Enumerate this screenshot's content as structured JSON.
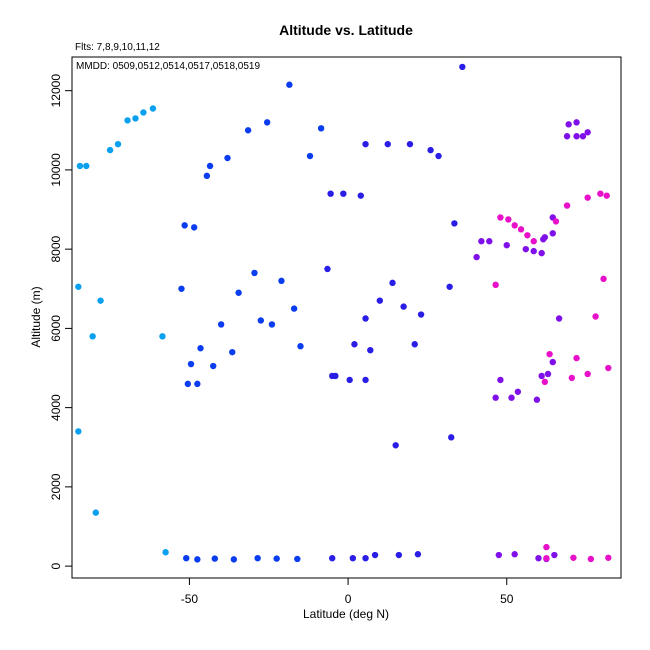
{
  "chart_data": {
    "type": "scatter",
    "title": "Altitude vs. Latitude",
    "xlabel": "Latitude (deg N)",
    "ylabel": "Altitude (m)",
    "annotations": [
      "Flts: 7,8,9,10,11,12",
      "MMDD: 0509,0512,0514,0517,0518,0519"
    ],
    "xlim": [
      -87,
      86
    ],
    "ylim": [
      -300,
      12850
    ],
    "xticks": [
      -50,
      0,
      50
    ],
    "yticks": [
      0,
      2000,
      4000,
      6000,
      8000,
      10000,
      12000
    ],
    "grid": false,
    "series": [
      {
        "color": "#0aa0f0",
        "points": [
          [
            -84.5,
            10100
          ],
          [
            -82.5,
            10100
          ],
          [
            -75,
            10500
          ],
          [
            -72.5,
            10650
          ],
          [
            -69.5,
            11250
          ],
          [
            -67,
            11300
          ],
          [
            -64.5,
            11450
          ],
          [
            -61.5,
            11550
          ],
          [
            -85,
            7050
          ],
          [
            -78,
            6700
          ],
          [
            -80.5,
            5800
          ],
          [
            -58.5,
            5800
          ],
          [
            -85,
            3400
          ],
          [
            -79.5,
            1350
          ],
          [
            -57.5,
            350
          ]
        ]
      },
      {
        "color": "#0a3cf0",
        "points": [
          [
            -18.5,
            12150
          ],
          [
            -25.5,
            11200
          ],
          [
            -31.5,
            11000
          ],
          [
            -8.5,
            11050
          ],
          [
            -12,
            10350
          ],
          [
            -38,
            10300
          ],
          [
            -43.5,
            10100
          ],
          [
            -44.5,
            9850
          ],
          [
            -51.5,
            8600
          ],
          [
            -48.5,
            8550
          ],
          [
            -29.5,
            7400
          ],
          [
            -21,
            7200
          ],
          [
            -52.5,
            7000
          ],
          [
            -34.5,
            6900
          ],
          [
            -17,
            6500
          ],
          [
            -27.5,
            6200
          ],
          [
            -24,
            6100
          ],
          [
            -40,
            6100
          ],
          [
            -15,
            5550
          ],
          [
            -36.5,
            5400
          ],
          [
            -46.5,
            5500
          ],
          [
            -49.5,
            5100
          ],
          [
            -42.5,
            5050
          ],
          [
            -50.5,
            4600
          ],
          [
            -47.5,
            4600
          ],
          [
            -51,
            200
          ],
          [
            -47.5,
            170
          ],
          [
            -42,
            190
          ],
          [
            -36,
            170
          ],
          [
            -28.5,
            200
          ],
          [
            -22.5,
            190
          ],
          [
            -16,
            180
          ]
        ]
      },
      {
        "color": "#2a1ee6",
        "points": [
          [
            36,
            12600
          ],
          [
            5.5,
            10650
          ],
          [
            12.5,
            10650
          ],
          [
            19.5,
            10650
          ],
          [
            26,
            10500
          ],
          [
            28.5,
            10350
          ],
          [
            -5.5,
            9400
          ],
          [
            -1.5,
            9400
          ],
          [
            4,
            9350
          ],
          [
            33.5,
            8650
          ],
          [
            -6.5,
            7500
          ],
          [
            14,
            7150
          ],
          [
            10,
            6700
          ],
          [
            17.5,
            6550
          ],
          [
            32,
            7050
          ],
          [
            5.5,
            6250
          ],
          [
            23,
            6350
          ],
          [
            2,
            5600
          ],
          [
            7,
            5450
          ],
          [
            21,
            5600
          ],
          [
            -5,
            4800
          ],
          [
            -4,
            4800
          ],
          [
            0.5,
            4700
          ],
          [
            5.5,
            4700
          ],
          [
            15,
            3050
          ],
          [
            32.5,
            3250
          ],
          [
            -5,
            200
          ],
          [
            1.5,
            200
          ],
          [
            5.5,
            200
          ],
          [
            8.5,
            280
          ],
          [
            16,
            280
          ],
          [
            22,
            300
          ]
        ]
      },
      {
        "color": "#8010ea",
        "points": [
          [
            69.5,
            11150
          ],
          [
            72,
            11200
          ],
          [
            69,
            10850
          ],
          [
            72,
            10850
          ],
          [
            74,
            10850
          ],
          [
            75.5,
            10950
          ],
          [
            64.5,
            8800
          ],
          [
            42,
            8200
          ],
          [
            44.5,
            8200
          ],
          [
            40.5,
            7800
          ],
          [
            50,
            8100
          ],
          [
            56,
            8000
          ],
          [
            58.5,
            7950
          ],
          [
            61,
            7900
          ],
          [
            61.5,
            8250
          ],
          [
            62,
            8300
          ],
          [
            64.5,
            8400
          ],
          [
            66.5,
            6250
          ],
          [
            48,
            4700
          ],
          [
            46.5,
            4250
          ],
          [
            51.5,
            4250
          ],
          [
            53.5,
            4400
          ],
          [
            59.5,
            4200
          ],
          [
            61,
            4800
          ],
          [
            63,
            4850
          ],
          [
            64.5,
            5150
          ],
          [
            47.5,
            280
          ],
          [
            52.5,
            300
          ],
          [
            60,
            200
          ],
          [
            62.5,
            180
          ],
          [
            65,
            280
          ]
        ]
      },
      {
        "color": "#e810c8",
        "points": [
          [
            79.5,
            9400
          ],
          [
            81.5,
            9350
          ],
          [
            75.5,
            9300
          ],
          [
            69,
            9100
          ],
          [
            48,
            8800
          ],
          [
            50.5,
            8750
          ],
          [
            52.5,
            8600
          ],
          [
            54.5,
            8500
          ],
          [
            56.5,
            8350
          ],
          [
            58.5,
            8200
          ],
          [
            65.5,
            8700
          ],
          [
            46.5,
            7100
          ],
          [
            80.5,
            7250
          ],
          [
            78,
            6300
          ],
          [
            63.5,
            5350
          ],
          [
            72,
            5250
          ],
          [
            82,
            5000
          ],
          [
            75.5,
            4850
          ],
          [
            70.5,
            4750
          ],
          [
            62,
            4650
          ],
          [
            62.5,
            480
          ],
          [
            62.5,
            200
          ],
          [
            71,
            210
          ],
          [
            76.5,
            180
          ],
          [
            82,
            210
          ]
        ]
      }
    ]
  }
}
